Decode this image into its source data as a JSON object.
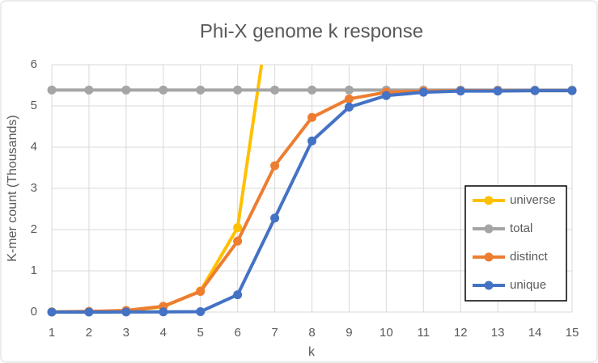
{
  "chart_data": {
    "type": "line",
    "title": "Phi-X genome k response",
    "x_label": "k",
    "y_label": "K-mer count (Thousands)",
    "x": [
      1,
      2,
      3,
      4,
      5,
      6,
      7,
      8,
      9,
      10,
      11,
      12,
      13,
      14,
      15
    ],
    "xlim": [
      1,
      15
    ],
    "xticks": [
      1,
      2,
      3,
      4,
      5,
      6,
      7,
      8,
      9,
      10,
      11,
      12,
      13,
      14,
      15
    ],
    "ylim": [
      0,
      6
    ],
    "yticks": [
      0,
      1,
      2,
      3,
      4,
      5,
      6
    ],
    "grid": true,
    "legend": "right",
    "series": [
      {
        "name": "universe",
        "color": "#FFC000",
        "values": [
          0.002,
          0.008,
          0.032,
          0.128,
          0.512,
          2.048,
          8.192,
          null,
          null,
          null,
          null,
          null,
          null,
          null,
          null
        ]
      },
      {
        "name": "total",
        "color": "#A5A5A5",
        "values": [
          5.386,
          5.386,
          5.386,
          5.386,
          5.386,
          5.386,
          5.386,
          5.386,
          5.386,
          5.386,
          5.386,
          5.386,
          5.386,
          5.386,
          5.386
        ]
      },
      {
        "name": "distinct",
        "color": "#ED7D31",
        "values": [
          0.004,
          0.016,
          0.04,
          0.14,
          0.5,
          1.72,
          3.55,
          4.72,
          5.17,
          5.33,
          5.36,
          5.37,
          5.37,
          5.37,
          5.37
        ]
      },
      {
        "name": "unique",
        "color": "#4472C4",
        "values": [
          0,
          0,
          0.002,
          0.005,
          0.01,
          0.42,
          2.28,
          4.15,
          4.97,
          5.25,
          5.33,
          5.36,
          5.36,
          5.37,
          5.37
        ]
      }
    ]
  }
}
